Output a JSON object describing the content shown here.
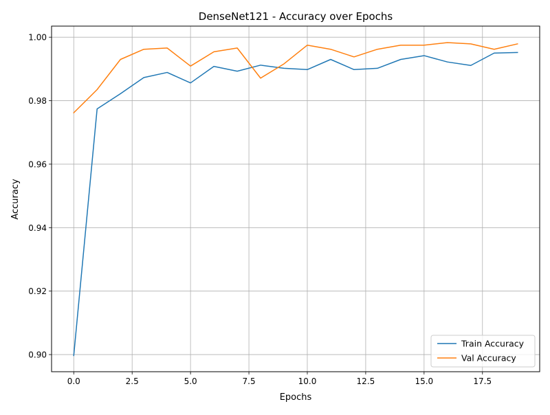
{
  "chart_data": {
    "type": "line",
    "title": "DenseNet121 - Accuracy over Epochs",
    "xlabel": "Epochs",
    "ylabel": "Accuracy",
    "x": [
      0,
      1,
      2,
      3,
      4,
      5,
      6,
      7,
      8,
      9,
      10,
      11,
      12,
      13,
      14,
      15,
      16,
      17,
      18,
      19
    ],
    "xlim": [
      -0.95,
      19.95
    ],
    "ylim": [
      0.8946,
      1.0035
    ],
    "xticks": [
      0.0,
      2.5,
      5.0,
      7.5,
      10.0,
      12.5,
      15.0,
      17.5
    ],
    "xtick_labels": [
      "0.0",
      "2.5",
      "5.0",
      "7.5",
      "10.0",
      "12.5",
      "15.0",
      "17.5"
    ],
    "yticks": [
      0.9,
      0.92,
      0.94,
      0.96,
      0.98,
      1.0
    ],
    "ytick_labels": [
      "0.90",
      "0.92",
      "0.94",
      "0.96",
      "0.98",
      "1.00"
    ],
    "grid": true,
    "legend_position": "lower-right",
    "series": [
      {
        "name": "Train Accuracy",
        "color": "#1f77b4",
        "values": [
          0.8997,
          0.9774,
          0.9822,
          0.9873,
          0.9889,
          0.9856,
          0.9908,
          0.9893,
          0.9912,
          0.9902,
          0.9898,
          0.993,
          0.9898,
          0.9902,
          0.993,
          0.9942,
          0.9922,
          0.9911,
          0.995,
          0.9952
        ]
      },
      {
        "name": "Val Accuracy",
        "color": "#ff7f0e",
        "values": [
          0.9762,
          0.9835,
          0.993,
          0.9962,
          0.9966,
          0.9909,
          0.9954,
          0.9966,
          0.9871,
          0.9916,
          0.9975,
          0.9962,
          0.9938,
          0.9962,
          0.9975,
          0.9975,
          0.9983,
          0.9979,
          0.9962,
          0.9979
        ]
      }
    ]
  }
}
